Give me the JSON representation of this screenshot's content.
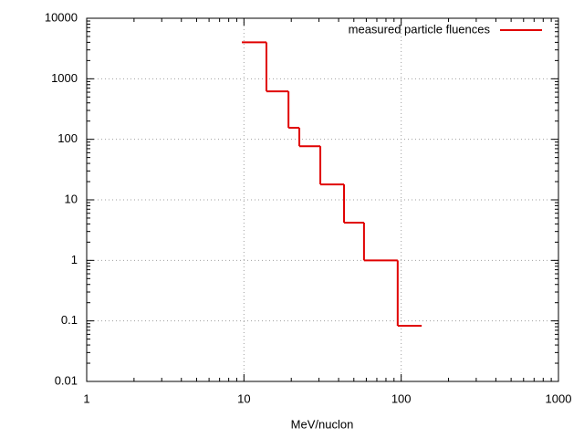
{
  "chart_data": {
    "type": "histogram",
    "xlabel": "MeV/nuclon",
    "xscale": "log",
    "yscale": "log",
    "grid": true,
    "legend": "top-right",
    "series": [
      {
        "name": "measured particle fluences",
        "color": "#e00000",
        "bins": [
          9.7,
          13.9,
          19.2,
          22.5,
          30.6,
          43.3,
          58,
          95,
          135
        ],
        "values": [
          4000,
          620,
          155,
          77,
          18,
          4.2,
          1.0,
          0.083
        ]
      }
    ],
    "xlim": [
      1,
      1000
    ],
    "xticks": [
      1,
      10,
      100,
      1000
    ],
    "ylim": [
      0.01,
      10000
    ],
    "yticks": [
      0.01,
      0.1,
      1,
      10,
      100,
      1000,
      10000
    ]
  }
}
